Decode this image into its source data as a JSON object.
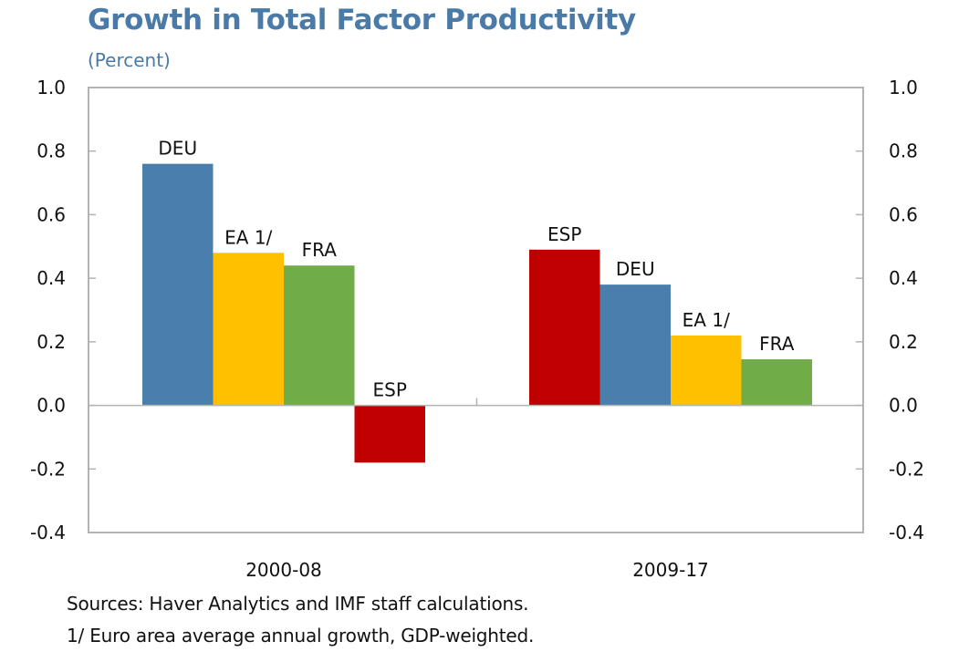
{
  "chart_data": {
    "type": "bar",
    "title": "Growth in Total Factor Productivity",
    "subtitle": "(Percent)",
    "xlabel": "",
    "ylabel": "",
    "ylim": [
      -0.4,
      1.0
    ],
    "yticks": [
      "1.0",
      "0.8",
      "0.6",
      "0.4",
      "0.2",
      "0.0",
      "-0.2",
      "-0.4"
    ],
    "ytick_values": [
      1.0,
      0.8,
      0.6,
      0.4,
      0.2,
      0.0,
      -0.2,
      -0.4
    ],
    "grid": false,
    "legend": "none (bars labeled directly)",
    "categories": [
      "2000-08",
      "2009-17"
    ],
    "groups": [
      {
        "category": "2000-08",
        "bars": [
          {
            "label": "DEU",
            "value": 0.76,
            "color": "#4a7fad"
          },
          {
            "label": "EA 1/",
            "value": 0.48,
            "color": "#ffc000"
          },
          {
            "label": "FRA",
            "value": 0.44,
            "color": "#70ad47"
          },
          {
            "label": "ESP",
            "value": -0.18,
            "color": "#c00000"
          }
        ]
      },
      {
        "category": "2009-17",
        "bars": [
          {
            "label": "ESP",
            "value": 0.49,
            "color": "#c00000"
          },
          {
            "label": "DEU",
            "value": 0.38,
            "color": "#4a7fad"
          },
          {
            "label": "EA 1/",
            "value": 0.22,
            "color": "#ffc000"
          },
          {
            "label": "FRA",
            "value": 0.145,
            "color": "#70ad47"
          }
        ]
      }
    ]
  },
  "notes": {
    "sources": "Sources: Haver Analytics and IMF staff calculations.",
    "footnote": "1/ Euro area average annual growth, GDP-weighted."
  }
}
